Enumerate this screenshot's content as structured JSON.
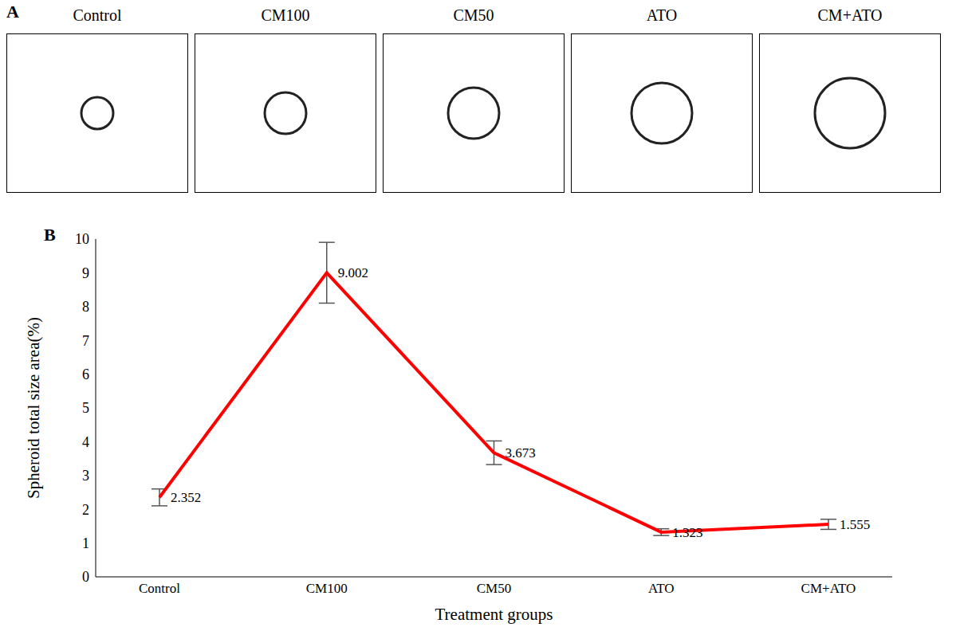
{
  "panel_a": {
    "panel_label": "A",
    "images": [
      "Control",
      "CM100",
      "CM50",
      "ATO",
      "CM+ATO"
    ]
  },
  "chart_data": {
    "type": "line",
    "panel_label": "B",
    "x_label": "Treatment groups",
    "y_label": "Spheroid total size area(%)",
    "categories": [
      "Control",
      "CM100",
      "CM50",
      "ATO",
      "CM+ATO"
    ],
    "values": [
      2.352,
      9.002,
      3.673,
      1.323,
      1.555
    ],
    "errors": [
      0.25,
      0.9,
      0.35,
      0.1,
      0.15
    ],
    "color": "#ff0000",
    "marker": "none",
    "ylim": [
      0,
      10
    ],
    "yticks": [
      0,
      1,
      2,
      3,
      4,
      5,
      6,
      7,
      8,
      9,
      10
    ],
    "grid": false,
    "data_labels": true
  }
}
